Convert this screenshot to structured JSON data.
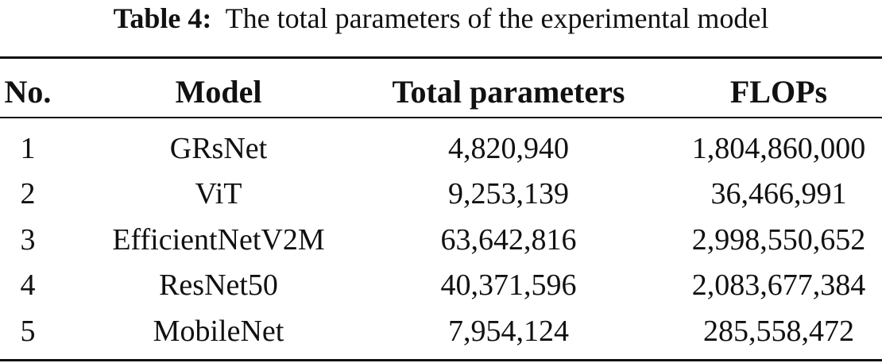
{
  "caption": {
    "label": "Table 4:",
    "text": "The total parameters of the experimental model"
  },
  "table": {
    "headers": {
      "no": "No.",
      "model": "Model",
      "params": "Total parameters",
      "flops": "FLOPs"
    },
    "rows": [
      {
        "no": "1",
        "model": "GRsNet",
        "params": "4,820,940",
        "flops": "1,804,860,000"
      },
      {
        "no": "2",
        "model": "ViT",
        "params": "9,253,139",
        "flops": "36,466,991"
      },
      {
        "no": "3",
        "model": "EfficientNetV2M",
        "params": "63,642,816",
        "flops": "2,998,550,652"
      },
      {
        "no": "4",
        "model": "ResNet50",
        "params": "40,371,596",
        "flops": "2,083,677,384"
      },
      {
        "no": "5",
        "model": "MobileNet",
        "params": "7,954,124",
        "flops": "285,558,472"
      }
    ]
  }
}
